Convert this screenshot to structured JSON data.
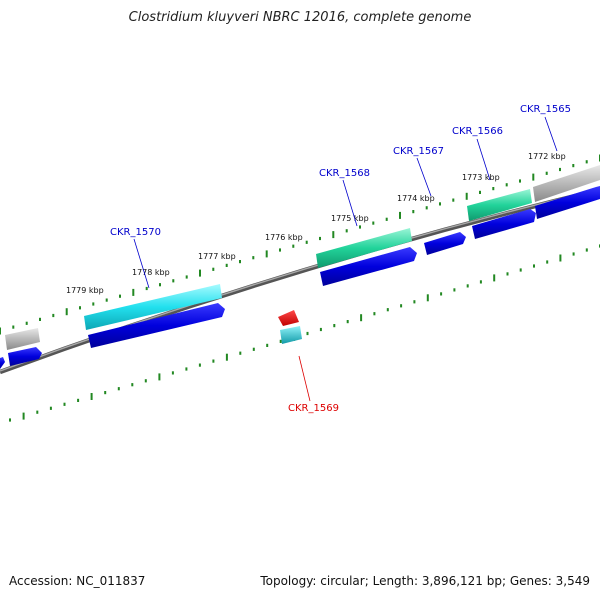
{
  "title": "Clostridium kluyveri NBRC 12016, complete genome",
  "footer": {
    "accession_label": "Accession:",
    "accession": "NC_011837",
    "topology_label": "Topology:",
    "topology": "circular",
    "length_label": "Length:",
    "length": "3,896,121 bp",
    "genes_label": "Genes:",
    "genes": "3,549"
  },
  "ruler": {
    "tick_labels": [
      "1772 kbp",
      "1773 kbp",
      "1774 kbp",
      "1775 kbp",
      "1776 kbp",
      "1777 kbp",
      "1778 kbp",
      "1779 kbp"
    ]
  },
  "genes": [
    {
      "name": "CKR_1565",
      "strand": "+",
      "color": "#0000cc"
    },
    {
      "name": "CKR_1566",
      "strand": "+",
      "color": "#0000cc"
    },
    {
      "name": "CKR_1567",
      "strand": "+",
      "color": "#0000cc"
    },
    {
      "name": "CKR_1568",
      "strand": "+",
      "color": "#0000cc"
    },
    {
      "name": "CKR_1569",
      "strand": "-",
      "color": "#dd0000"
    },
    {
      "name": "CKR_1570",
      "strand": "+",
      "color": "#0000cc"
    }
  ],
  "colors": {
    "forward_gene": "#0000e0",
    "reverse_gene": "#ee0000",
    "tick": "#228822",
    "backbone": "#777777",
    "cog_teal": "#22d39a",
    "cog_cyan": "#22e0ee",
    "cog_gray": "#b8b8b8",
    "cog_small": "#20b8c8"
  }
}
